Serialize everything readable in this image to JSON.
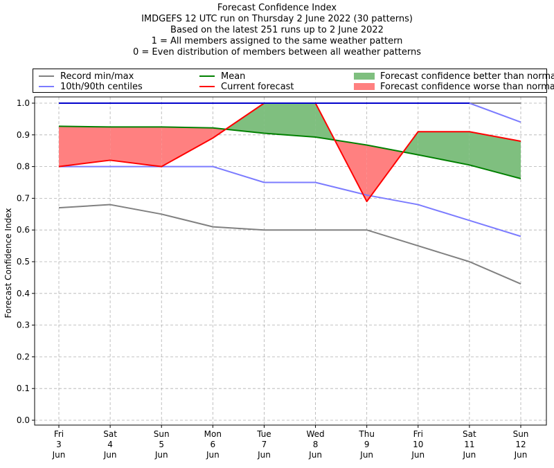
{
  "header": {
    "title": "Forecast Confidence Index",
    "lines": [
      "IMDGEFS 12 UTC run on Thursday 2 June 2022 (30 patterns)",
      "Based on the latest 251 runs up to 2 June 2022",
      "1 = All members assigned to the same weather pattern",
      "0 = Even distribution of members between all weather patterns"
    ]
  },
  "legend": {
    "record": "Record min/max",
    "centiles": "10th/90th centiles",
    "mean": "Mean",
    "current": "Current forecast",
    "better": "Forecast confidence better than normal",
    "worse": "Forecast confidence worse than normal"
  },
  "colors": {
    "record": "#808080",
    "centiles": "#7b7bff",
    "mean": "#008000",
    "current": "#ff0000",
    "better": "#7fbf7f",
    "worse": "#ff8080",
    "top_line": "#0000cc"
  },
  "chart_data": {
    "type": "line",
    "title": "Forecast Confidence Index",
    "xlabel": "",
    "ylabel": "Forecast Confidence Index",
    "ylim": [
      0,
      1
    ],
    "grid": true,
    "legend_position": "top",
    "yticks": [
      "0.0",
      "0.1",
      "0.2",
      "0.3",
      "0.4",
      "0.5",
      "0.6",
      "0.7",
      "0.8",
      "0.9",
      "1.0"
    ],
    "categories": [
      [
        "Fri",
        "3",
        "Jun"
      ],
      [
        "Sat",
        "4",
        "Jun"
      ],
      [
        "Sun",
        "5",
        "Jun"
      ],
      [
        "Mon",
        "6",
        "Jun"
      ],
      [
        "Tue",
        "7",
        "Jun"
      ],
      [
        "Wed",
        "8",
        "Jun"
      ],
      [
        "Thu",
        "9",
        "Jun"
      ],
      [
        "Fri",
        "10",
        "Jun"
      ],
      [
        "Sat",
        "11",
        "Jun"
      ],
      [
        "Sun",
        "12",
        "Jun"
      ]
    ],
    "series": [
      {
        "key": "record_min",
        "name": "Record min/max",
        "values": [
          0.67,
          0.68,
          0.65,
          0.61,
          0.6,
          0.6,
          0.6,
          0.55,
          0.5,
          0.43
        ]
      },
      {
        "key": "record_max",
        "name": "Record min/max",
        "values": [
          1.0,
          1.0,
          1.0,
          1.0,
          1.0,
          1.0,
          1.0,
          1.0,
          1.0,
          1.0
        ]
      },
      {
        "key": "centile_10",
        "name": "10th/90th centiles",
        "values": [
          0.8,
          0.8,
          0.8,
          0.8,
          0.75,
          0.75,
          0.71,
          0.68,
          0.63,
          0.58
        ]
      },
      {
        "key": "centile_90",
        "name": "10th/90th centiles",
        "values": [
          1.0,
          1.0,
          1.0,
          1.0,
          1.0,
          1.0,
          1.0,
          1.0,
          1.0,
          0.94
        ]
      },
      {
        "key": "mean",
        "name": "Mean",
        "values": [
          0.927,
          0.925,
          0.925,
          0.922,
          0.905,
          0.893,
          0.868,
          0.837,
          0.805,
          0.762
        ]
      },
      {
        "key": "current",
        "name": "Current forecast",
        "values": [
          0.8,
          0.82,
          0.8,
          0.89,
          1.0,
          1.0,
          0.69,
          0.91,
          0.91,
          0.88
        ]
      }
    ]
  }
}
